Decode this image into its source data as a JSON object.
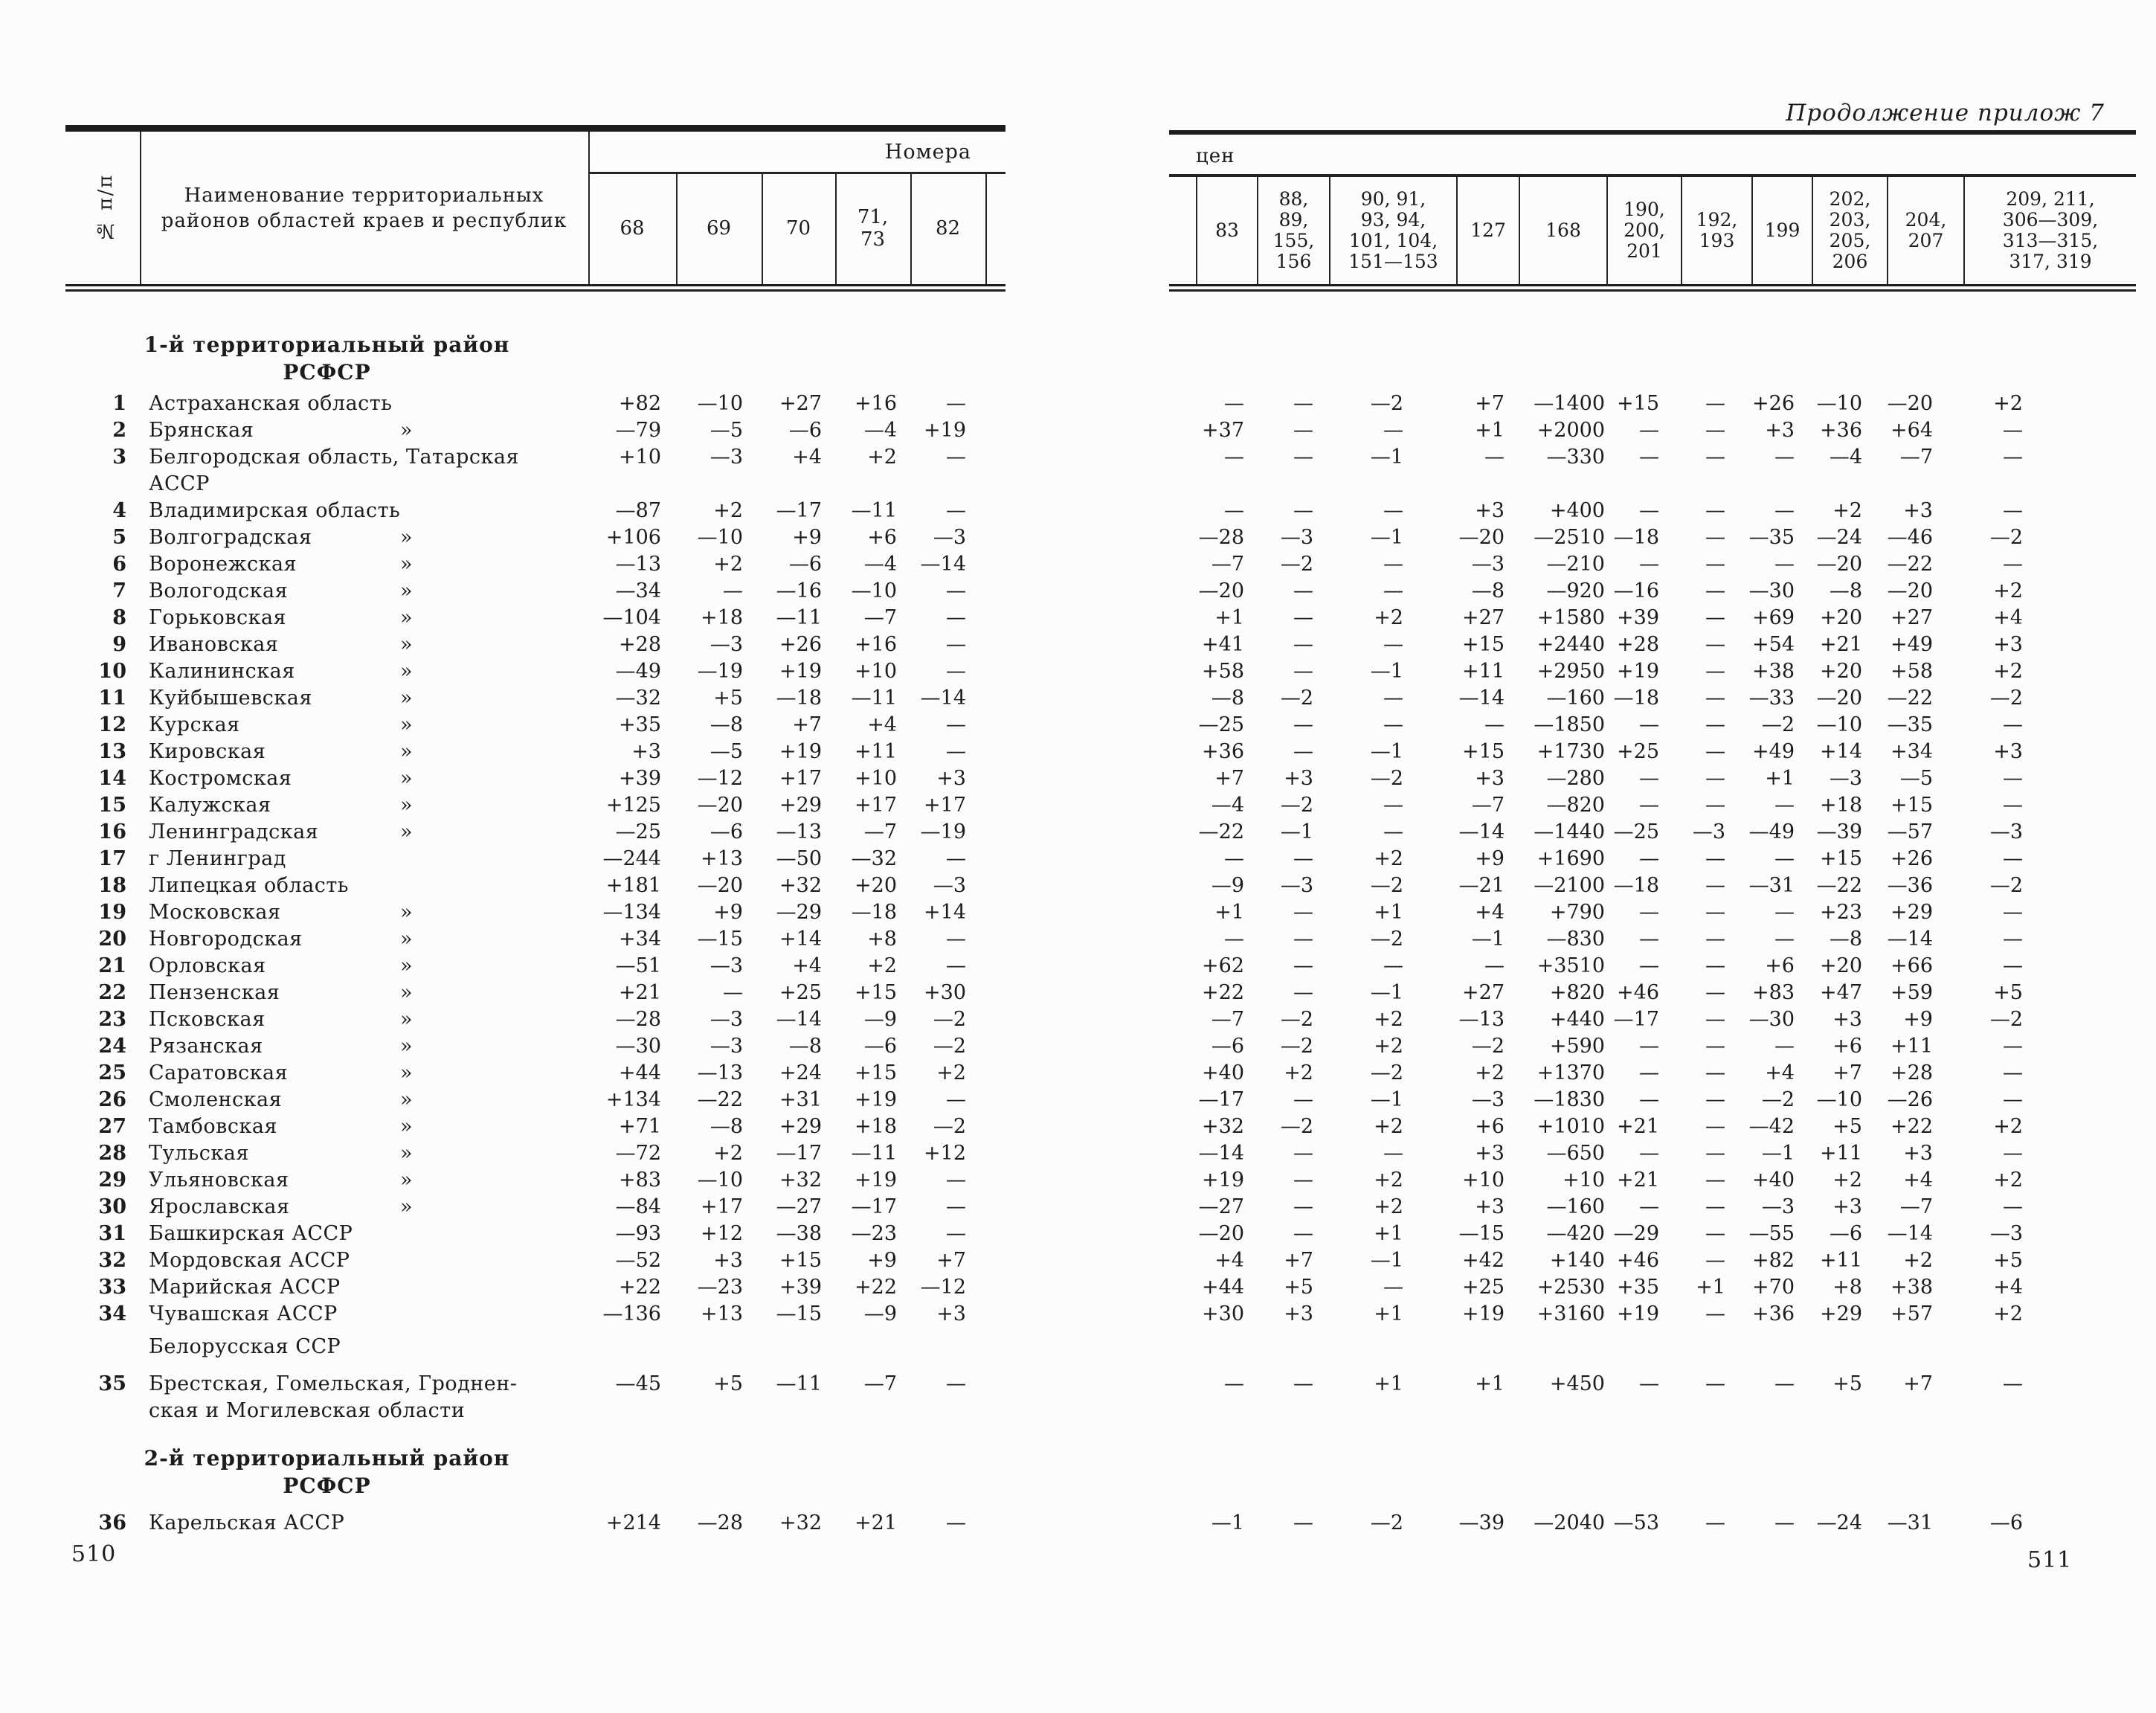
{
  "note": "Продолжение прилож  7",
  "left_page": {
    "page_number": "510",
    "header": {
      "row_col": "№ п/п",
      "name_col_line1": "Наименование территориальных",
      "name_col_line2": "районов областей краев и республик",
      "group_label": "Номера",
      "columns": [
        [
          "68"
        ],
        [
          "69"
        ],
        [
          "70"
        ],
        [
          "71,",
          "73"
        ],
        [
          "82"
        ]
      ]
    }
  },
  "right_page": {
    "page_number": "511",
    "header": {
      "corner_label": "цен",
      "columns": [
        [
          "83"
        ],
        [
          "88,",
          "89,",
          "155,",
          "156"
        ],
        [
          "90, 91,",
          "93, 94,",
          "101, 104,",
          "151—153"
        ],
        [
          "127"
        ],
        [
          "168"
        ],
        [
          "190,",
          "200,",
          "201"
        ],
        [
          "192,",
          "193"
        ],
        [
          "199"
        ],
        [
          "202,",
          "203,",
          "205,",
          "206"
        ],
        [
          "204,",
          "207"
        ],
        [
          "209, 211,",
          "306—309,",
          "313—315,",
          "317, 319"
        ]
      ]
    }
  },
  "rows": [
    {
      "type": "section",
      "lines": [
        "1-й территориальный район",
        "РСФСР"
      ]
    },
    {
      "type": "row",
      "n": "1",
      "name": "Астраханская область",
      "ditto": false,
      "left": [
        "+82",
        "—10",
        "+27",
        "+16",
        "—"
      ],
      "right": [
        "—",
        "—",
        "—2",
        "+7",
        "—1400",
        "+15",
        "—",
        "+26",
        "—10",
        "—20",
        "+2"
      ]
    },
    {
      "type": "row",
      "n": "2",
      "name": "Брянская",
      "ditto": true,
      "left": [
        "—79",
        "—5",
        "—6",
        "—4",
        "+19"
      ],
      "right": [
        "+37",
        "—",
        "—",
        "+1",
        "+2000",
        "—",
        "—",
        "+3",
        "+36",
        "+64",
        "—"
      ]
    },
    {
      "type": "row",
      "n": "3",
      "name": "Белгородская область,  Татарская",
      "name2": "АССР",
      "ditto": false,
      "left": [
        "+10",
        "—3",
        "+4",
        "+2",
        "—"
      ],
      "right": [
        "—",
        "—",
        "—1",
        "—",
        "—330",
        "—",
        "—",
        "—",
        "—4",
        "—7",
        "—"
      ]
    },
    {
      "type": "row",
      "n": "4",
      "name": "Владимирская  область",
      "ditto": false,
      "left": [
        "—87",
        "+2",
        "—17",
        "—11",
        "—"
      ],
      "right": [
        "—",
        "—",
        "—",
        "+3",
        "+400",
        "—",
        "—",
        "—",
        "+2",
        "+3",
        "—"
      ]
    },
    {
      "type": "row",
      "n": "5",
      "name": "Волгоградская",
      "ditto": true,
      "left": [
        "+106",
        "—10",
        "+9",
        "+6",
        "—3"
      ],
      "right": [
        "—28",
        "—3",
        "—1",
        "—20",
        "—2510",
        "—18",
        "—",
        "—35",
        "—24",
        "—46",
        "—2"
      ]
    },
    {
      "type": "row",
      "n": "6",
      "name": "Воронежская",
      "ditto": true,
      "left": [
        "—13",
        "+2",
        "—6",
        "—4",
        "—14"
      ],
      "right": [
        "—7",
        "—2",
        "—",
        "—3",
        "—210",
        "—",
        "—",
        "—",
        "—20",
        "—22",
        "—"
      ]
    },
    {
      "type": "row",
      "n": "7",
      "name": "Вологодская",
      "ditto": true,
      "left": [
        "—34",
        "—",
        "—16",
        "—10",
        "—"
      ],
      "right": [
        "—20",
        "—",
        "—",
        "—8",
        "—920",
        "—16",
        "—",
        "—30",
        "—8",
        "—20",
        "+2"
      ]
    },
    {
      "type": "row",
      "n": "8",
      "name": "Горьковская",
      "ditto": true,
      "left": [
        "—104",
        "+18",
        "—11",
        "—7",
        "—"
      ],
      "right": [
        "+1",
        "—",
        "+2",
        "+27",
        "+1580",
        "+39",
        "—",
        "+69",
        "+20",
        "+27",
        "+4"
      ]
    },
    {
      "type": "row",
      "n": "9",
      "name": "Ивановская",
      "ditto": true,
      "left": [
        "+28",
        "—3",
        "+26",
        "+16",
        "—"
      ],
      "right": [
        "+41",
        "—",
        "—",
        "+15",
        "+2440",
        "+28",
        "—",
        "+54",
        "+21",
        "+49",
        "+3"
      ]
    },
    {
      "type": "row",
      "n": "10",
      "name": "Калининская",
      "ditto": true,
      "left": [
        "—49",
        "—19",
        "+19",
        "+10",
        "—"
      ],
      "right": [
        "+58",
        "—",
        "—1",
        "+11",
        "+2950",
        "+19",
        "—",
        "+38",
        "+20",
        "+58",
        "+2"
      ]
    },
    {
      "type": "row",
      "n": "11",
      "name": "Куйбышевская",
      "ditto": true,
      "left": [
        "—32",
        "+5",
        "—18",
        "—11",
        "—14"
      ],
      "right": [
        "—8",
        "—2",
        "—",
        "—14",
        "—160",
        "—18",
        "—",
        "—33",
        "—20",
        "—22",
        "—2"
      ]
    },
    {
      "type": "row",
      "n": "12",
      "name": "Курская",
      "ditto": true,
      "left": [
        "+35",
        "—8",
        "+7",
        "+4",
        "—"
      ],
      "right": [
        "—25",
        "—",
        "—",
        "—",
        "—1850",
        "—",
        "—",
        "—2",
        "—10",
        "—35",
        "—"
      ]
    },
    {
      "type": "row",
      "n": "13",
      "name": "Кировская",
      "ditto": true,
      "left": [
        "+3",
        "—5",
        "+19",
        "+11",
        "—"
      ],
      "right": [
        "+36",
        "—",
        "—1",
        "+15",
        "+1730",
        "+25",
        "—",
        "+49",
        "+14",
        "+34",
        "+3"
      ]
    },
    {
      "type": "row",
      "n": "14",
      "name": "Костромская",
      "ditto": true,
      "left": [
        "+39",
        "—12",
        "+17",
        "+10",
        "+3"
      ],
      "right": [
        "+7",
        "+3",
        "—2",
        "+3",
        "—280",
        "—",
        "—",
        "+1",
        "—3",
        "—5",
        "—"
      ]
    },
    {
      "type": "row",
      "n": "15",
      "name": "Калужская",
      "ditto": true,
      "left": [
        "+125",
        "—20",
        "+29",
        "+17",
        "+17"
      ],
      "right": [
        "—4",
        "—2",
        "—",
        "—7",
        "—820",
        "—",
        "—",
        "—",
        "+18",
        "+15",
        "—"
      ]
    },
    {
      "type": "row",
      "n": "16",
      "name": "Ленинградская",
      "ditto": true,
      "left": [
        "—25",
        "—6",
        "—13",
        "—7",
        "—19"
      ],
      "right": [
        "—22",
        "—1",
        "—",
        "—14",
        "—1440",
        "—25",
        "—3",
        "—49",
        "—39",
        "—57",
        "—3"
      ]
    },
    {
      "type": "row",
      "n": "17",
      "name": "г Ленинград",
      "ditto": false,
      "left": [
        "—244",
        "+13",
        "—50",
        "—32",
        "—"
      ],
      "right": [
        "—",
        "—",
        "+2",
        "+9",
        "+1690",
        "—",
        "—",
        "—",
        "+15",
        "+26",
        "—"
      ]
    },
    {
      "type": "row",
      "n": "18",
      "name": "Липецкая  область",
      "ditto": false,
      "left": [
        "+181",
        "—20",
        "+32",
        "+20",
        "—3"
      ],
      "right": [
        "—9",
        "—3",
        "—2",
        "—21",
        "—2100",
        "—18",
        "—",
        "—31",
        "—22",
        "—36",
        "—2"
      ]
    },
    {
      "type": "row",
      "n": "19",
      "name": "Московская",
      "ditto": true,
      "left": [
        "—134",
        "+9",
        "—29",
        "—18",
        "+14"
      ],
      "right": [
        "+1",
        "—",
        "+1",
        "+4",
        "+790",
        "—",
        "—",
        "—",
        "+23",
        "+29",
        "—"
      ]
    },
    {
      "type": "row",
      "n": "20",
      "name": "Новгородская",
      "ditto": true,
      "left": [
        "+34",
        "—15",
        "+14",
        "+8",
        "—"
      ],
      "right": [
        "—",
        "—",
        "—2",
        "—1",
        "—830",
        "—",
        "—",
        "—",
        "—8",
        "—14",
        "—"
      ]
    },
    {
      "type": "row",
      "n": "21",
      "name": "Орловская",
      "ditto": true,
      "left": [
        "—51",
        "—3",
        "+4",
        "+2",
        "—"
      ],
      "right": [
        "+62",
        "—",
        "—",
        "—",
        "+3510",
        "—",
        "—",
        "+6",
        "+20",
        "+66",
        "—"
      ]
    },
    {
      "type": "row",
      "n": "22",
      "name": "Пензенская",
      "ditto": true,
      "left": [
        "+21",
        "—",
        "+25",
        "+15",
        "+30"
      ],
      "right": [
        "+22",
        "—",
        "—1",
        "+27",
        "+820",
        "+46",
        "—",
        "+83",
        "+47",
        "+59",
        "+5"
      ]
    },
    {
      "type": "row",
      "n": "23",
      "name": "Псковская",
      "ditto": true,
      "left": [
        "—28",
        "—3",
        "—14",
        "—9",
        "—2"
      ],
      "right": [
        "—7",
        "—2",
        "+2",
        "—13",
        "+440",
        "—17",
        "—",
        "—30",
        "+3",
        "+9",
        "—2"
      ]
    },
    {
      "type": "row",
      "n": "24",
      "name": "Рязанская",
      "ditto": true,
      "left": [
        "—30",
        "—3",
        "—8",
        "—6",
        "—2"
      ],
      "right": [
        "—6",
        "—2",
        "+2",
        "—2",
        "+590",
        "—",
        "—",
        "—",
        "+6",
        "+11",
        "—"
      ]
    },
    {
      "type": "row",
      "n": "25",
      "name": "Саратовская",
      "ditto": true,
      "left": [
        "+44",
        "—13",
        "+24",
        "+15",
        "+2"
      ],
      "right": [
        "+40",
        "+2",
        "—2",
        "+2",
        "+1370",
        "—",
        "—",
        "+4",
        "+7",
        "+28",
        "—"
      ]
    },
    {
      "type": "row",
      "n": "26",
      "name": "Смоленская",
      "ditto": true,
      "left": [
        "+134",
        "—22",
        "+31",
        "+19",
        "—"
      ],
      "right": [
        "—17",
        "—",
        "—1",
        "—3",
        "—1830",
        "—",
        "—",
        "—2",
        "—10",
        "—26",
        "—"
      ]
    },
    {
      "type": "row",
      "n": "27",
      "name": "Тамбовская",
      "ditto": true,
      "left": [
        "+71",
        "—8",
        "+29",
        "+18",
        "—2"
      ],
      "right": [
        "+32",
        "—2",
        "+2",
        "+6",
        "+1010",
        "+21",
        "—",
        "—42",
        "+5",
        "+22",
        "+2"
      ]
    },
    {
      "type": "row",
      "n": "28",
      "name": "Тульская",
      "ditto": true,
      "left": [
        "—72",
        "+2",
        "—17",
        "—11",
        "+12"
      ],
      "right": [
        "—14",
        "—",
        "—",
        "+3",
        "—650",
        "—",
        "—",
        "—1",
        "+11",
        "+3",
        "—"
      ]
    },
    {
      "type": "row",
      "n": "29",
      "name": "Ульяновская",
      "ditto": true,
      "left": [
        "+83",
        "—10",
        "+32",
        "+19",
        "—"
      ],
      "right": [
        "+19",
        "—",
        "+2",
        "+10",
        "+10",
        "+21",
        "—",
        "+40",
        "+2",
        "+4",
        "+2"
      ]
    },
    {
      "type": "row",
      "n": "30",
      "name": "Ярославская",
      "ditto": true,
      "left": [
        "—84",
        "+17",
        "—27",
        "—17",
        "—"
      ],
      "right": [
        "—27",
        "—",
        "+2",
        "+3",
        "—160",
        "—",
        "—",
        "—3",
        "+3",
        "—7",
        "—"
      ]
    },
    {
      "type": "row",
      "n": "31",
      "name": "Башкирская АССР",
      "ditto": false,
      "left": [
        "—93",
        "+12",
        "—38",
        "—23",
        "—"
      ],
      "right": [
        "—20",
        "—",
        "+1",
        "—15",
        "—420",
        "—29",
        "—",
        "—55",
        "—6",
        "—14",
        "—3"
      ]
    },
    {
      "type": "row",
      "n": "32",
      "name": "Мордовская АССР",
      "ditto": false,
      "left": [
        "—52",
        "+3",
        "+15",
        "+9",
        "+7"
      ],
      "right": [
        "+4",
        "+7",
        "—1",
        "+42",
        "+140",
        "+46",
        "—",
        "+82",
        "+11",
        "+2",
        "+5"
      ]
    },
    {
      "type": "row",
      "n": "33",
      "name": "Марийская АССР",
      "ditto": false,
      "left": [
        "+22",
        "—23",
        "+39",
        "+22",
        "—12"
      ],
      "right": [
        "+44",
        "+5",
        "—",
        "+25",
        "+2530",
        "+35",
        "+1",
        "+70",
        "+8",
        "+38",
        "+4"
      ]
    },
    {
      "type": "row",
      "n": "34",
      "name": "Чувашская АССР",
      "ditto": false,
      "left": [
        "—136",
        "+13",
        "—15",
        "—9",
        "+3"
      ],
      "right": [
        "+30",
        "+3",
        "+1",
        "+19",
        "+3160",
        "+19",
        "—",
        "+36",
        "+29",
        "+57",
        "+2"
      ]
    },
    {
      "type": "subsection",
      "mt": 8,
      "lines": [
        "Белорусская ССР"
      ]
    },
    {
      "type": "row",
      "mt": 14,
      "n": "35",
      "name": "Брестская,  Гомельская,  Гроднен-",
      "name2": "ская и Могилевская области",
      "ditto": false,
      "left": [
        "—45",
        "+5",
        "—11",
        "—7",
        "—"
      ],
      "right": [
        "—",
        "—",
        "+1",
        "+1",
        "+450",
        "—",
        "—",
        "—",
        "+5",
        "+7",
        "—"
      ]
    },
    {
      "type": "section",
      "mt": 25,
      "lines": [
        "2-й территориальный район",
        "РСФСР"
      ]
    },
    {
      "type": "row",
      "mt": 8,
      "n": "36",
      "name": "Карельская АССР",
      "ditto": false,
      "left": [
        "+214",
        "—28",
        "+32",
        "+21",
        "—"
      ],
      "right": [
        "—1",
        "—",
        "—2",
        "—39",
        "—2040",
        "—53",
        "—",
        "—",
        "—24",
        "—31",
        "—6"
      ]
    }
  ]
}
